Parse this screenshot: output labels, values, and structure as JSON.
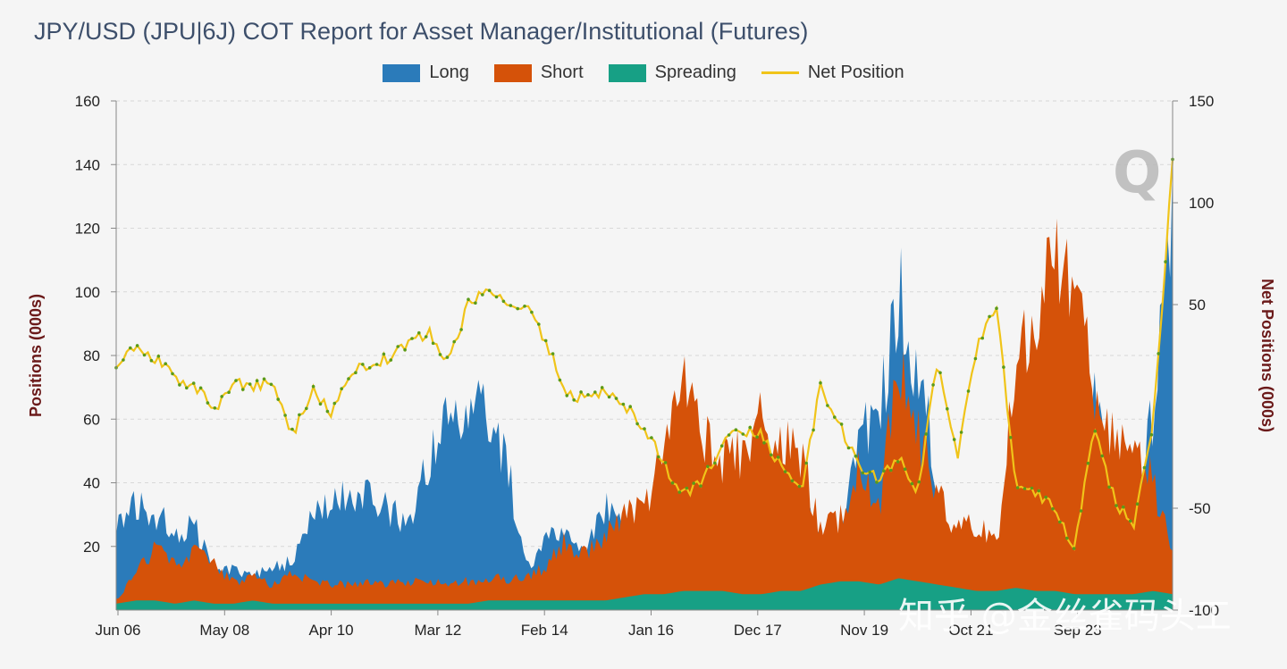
{
  "chart_data": {
    "type": "area",
    "title": "JPY/USD (JPU|6J) COT Report for Asset Manager/Institutional (Futures)",
    "ylabel": "Positions (000s)",
    "y2label": "Net Positions (000s)",
    "ylim": [
      0,
      160
    ],
    "yticks": [
      20,
      40,
      60,
      80,
      100,
      120,
      140,
      160
    ],
    "y2lim": [
      -100,
      150
    ],
    "y2ticks": [
      -100,
      -50,
      50,
      100,
      150
    ],
    "y2ticklabels": [
      "-100",
      "-50",
      "50",
      "100",
      "150"
    ],
    "xticks": [
      "Jun 06",
      "May 08",
      "Apr 10",
      "Mar 12",
      "Feb 14",
      "Jan 16",
      "Dec 17",
      "Nov 19",
      "Oct 21",
      "Sep 23"
    ],
    "legend": [
      {
        "name": "Long",
        "color": "#2b7bba"
      },
      {
        "name": "Short",
        "color": "#d55209"
      },
      {
        "name": "Spreading",
        "color": "#17a085"
      },
      {
        "name": "Net Position",
        "color": "#f0c419"
      }
    ],
    "series": [
      {
        "name": "Long",
        "axis": "left",
        "values": [
          29,
          33,
          30,
          25,
          27,
          12,
          13,
          11,
          14,
          15,
          28,
          33,
          38,
          35,
          31,
          26,
          48,
          62,
          63,
          60,
          45,
          13,
          22,
          25,
          18,
          32,
          26,
          22,
          20,
          18,
          20,
          17,
          22,
          20,
          28,
          30,
          25,
          18,
          55,
          60,
          100,
          75,
          42,
          12,
          15,
          11,
          10,
          18,
          24,
          40,
          72,
          22,
          28,
          62,
          120
        ]
      },
      {
        "name": "Short",
        "axis": "left",
        "values": [
          3,
          12,
          20,
          15,
          18,
          14,
          9,
          10,
          8,
          11,
          9,
          8,
          8,
          9,
          8,
          9,
          9,
          8,
          9,
          10,
          10,
          10,
          14,
          22,
          17,
          23,
          30,
          34,
          48,
          70,
          56,
          46,
          50,
          62,
          56,
          48,
          26,
          28,
          48,
          32,
          82,
          56,
          36,
          24,
          28,
          20,
          80,
          90,
          110,
          100,
          70,
          55,
          50,
          40,
          20
        ]
      },
      {
        "name": "Spreading",
        "axis": "left",
        "values": [
          2,
          3,
          3,
          2,
          3,
          2,
          2,
          3,
          2,
          2,
          2,
          2,
          2,
          2,
          2,
          2,
          2,
          2,
          2,
          3,
          3,
          3,
          3,
          3,
          3,
          3,
          4,
          5,
          5,
          6,
          6,
          6,
          5,
          5,
          6,
          6,
          8,
          9,
          9,
          8,
          10,
          9,
          8,
          7,
          6,
          6,
          7,
          6,
          6,
          5,
          5,
          5,
          5,
          6,
          5
        ]
      },
      {
        "name": "Net Position",
        "axis": "right",
        "values": [
          22,
          28,
          24,
          14,
          10,
          -2,
          12,
          10,
          12,
          -14,
          8,
          -3,
          18,
          20,
          24,
          32,
          36,
          22,
          50,
          56,
          52,
          48,
          32,
          6,
          4,
          8,
          0,
          -10,
          -28,
          -44,
          -36,
          -18,
          -12,
          -14,
          -30,
          -42,
          10,
          -10,
          -30,
          -36,
          -24,
          -42,
          24,
          -24,
          30,
          50,
          -40,
          -42,
          -50,
          -70,
          -10,
          -45,
          -60,
          -10,
          120
        ]
      }
    ]
  },
  "watermark": {
    "text": "知乎 @金丝雀码头工",
    "logo_letter": "Q"
  }
}
